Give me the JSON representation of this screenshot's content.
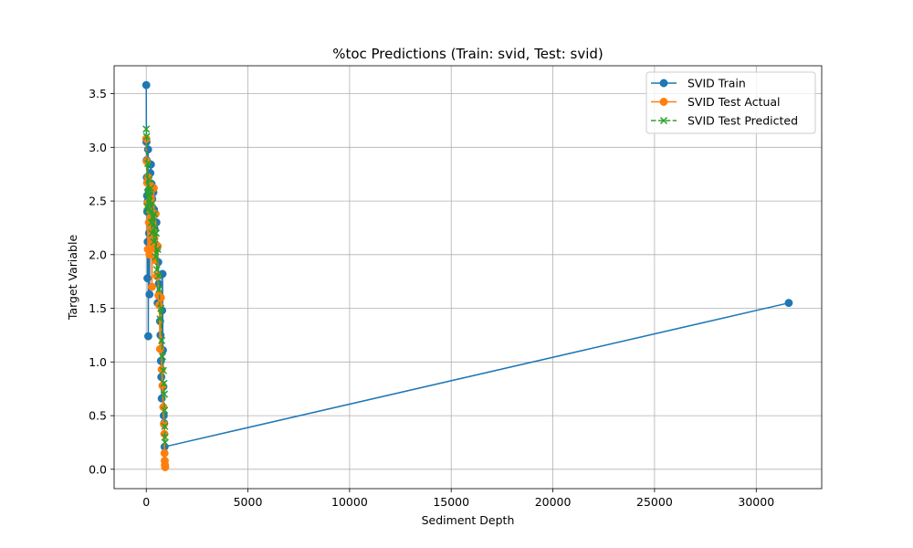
{
  "chart_data": {
    "type": "line",
    "title": "%toc Predictions (Train: svid, Test: svid)",
    "xlabel": "Sediment Depth",
    "ylabel": "Target Variable",
    "xlim": [
      -1580,
      33220
    ],
    "ylim": [
      -0.18,
      3.76
    ],
    "xticks": [
      0,
      5000,
      10000,
      15000,
      20000,
      25000,
      30000
    ],
    "xtick_labels": [
      "0",
      "5000",
      "10000",
      "15000",
      "20000",
      "25000",
      "30000"
    ],
    "yticks": [
      0.0,
      0.5,
      1.0,
      1.5,
      2.0,
      2.5,
      3.0,
      3.5
    ],
    "ytick_labels": [
      "0.0",
      "0.5",
      "1.0",
      "1.5",
      "2.0",
      "2.5",
      "3.0",
      "3.5"
    ],
    "grid": true,
    "legend_position": "upper right",
    "series": [
      {
        "name": "SVID Train",
        "color": "#1f77b4",
        "linestyle": "solid",
        "marker": "circle",
        "x": [
          0,
          10,
          20,
          30,
          40,
          50,
          60,
          70,
          80,
          90,
          100,
          120,
          140,
          160,
          180,
          200,
          230,
          260,
          290,
          320,
          350,
          380,
          410,
          440,
          470,
          500,
          530,
          560,
          590,
          620,
          650,
          680,
          700,
          720,
          740,
          760,
          780,
          800,
          820,
          840,
          860,
          880,
          900,
          31600
        ],
        "y": [
          3.58,
          3.05,
          2.88,
          2.72,
          2.55,
          2.4,
          1.78,
          2.12,
          2.5,
          2.98,
          1.24,
          2.6,
          2.2,
          1.63,
          2.44,
          2.76,
          2.84,
          2.66,
          2.52,
          2.35,
          2.58,
          2.42,
          2.24,
          2.1,
          1.95,
          2.3,
          2.06,
          1.55,
          1.93,
          1.73,
          1.62,
          1.38,
          1.25,
          1.01,
          0.86,
          0.66,
          1.48,
          1.82,
          1.11,
          0.77,
          0.5,
          0.43,
          0.21,
          1.55
        ]
      },
      {
        "name": "SVID Test Actual",
        "color": "#ff7f0e",
        "linestyle": "solid",
        "marker": "circle",
        "x": [
          0,
          20,
          40,
          60,
          80,
          100,
          130,
          160,
          190,
          220,
          250,
          280,
          310,
          340,
          370,
          400,
          430,
          460,
          490,
          520,
          560,
          600,
          640,
          680,
          720,
          760,
          800,
          840,
          870,
          890,
          900,
          910,
          920,
          930
        ],
        "y": [
          3.08,
          2.87,
          2.67,
          2.48,
          2.05,
          2.72,
          2.3,
          2.0,
          2.65,
          2.52,
          2.4,
          1.7,
          2.25,
          2.1,
          2.62,
          2.15,
          1.95,
          2.38,
          2.05,
          1.8,
          2.08,
          1.62,
          1.53,
          1.12,
          1.6,
          0.93,
          0.78,
          0.58,
          0.42,
          0.33,
          0.15,
          0.08,
          0.04,
          0.02
        ]
      },
      {
        "name": "SVID Test Predicted",
        "color": "#2ca02c",
        "linestyle": "dashed",
        "marker": "x",
        "x": [
          0,
          20,
          40,
          60,
          80,
          100,
          130,
          160,
          190,
          220,
          250,
          280,
          310,
          340,
          370,
          400,
          430,
          460,
          490,
          520,
          560,
          600,
          640,
          680,
          720,
          760,
          800,
          840,
          870,
          890,
          900,
          910,
          920,
          930
        ],
        "y": [
          3.17,
          3.1,
          2.45,
          2.58,
          2.85,
          2.42,
          2.7,
          2.55,
          2.4,
          2.62,
          2.3,
          2.2,
          2.48,
          2.35,
          2.12,
          2.38,
          2.25,
          1.98,
          2.2,
          1.86,
          2.05,
          1.8,
          1.68,
          1.4,
          1.5,
          1.2,
          1.05,
          0.92,
          0.8,
          0.7,
          0.55,
          0.4,
          0.3,
          0.25
        ]
      }
    ]
  }
}
